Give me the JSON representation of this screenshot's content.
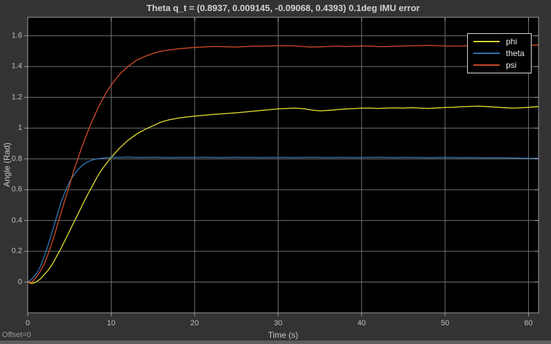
{
  "window": {
    "offset_label": "Offset=0",
    "background_color": "#333333",
    "bottom_bar_color": "#5e5e5e"
  },
  "chart_data": {
    "type": "line",
    "title": "Theta q_t = (0.8937, 0.009145, -0.09068, 0.4393) 0.1deg IMU error",
    "xlabel": "Time (s)",
    "ylabel": "Angle (Rad)",
    "xlim": [
      0,
      61.2
    ],
    "ylim": [
      -0.2,
      1.72
    ],
    "xticks": {
      "values": [
        0,
        10,
        20,
        30,
        40,
        50,
        60
      ],
      "labels": [
        "0",
        "10",
        "20",
        "30",
        "40",
        "50",
        "60"
      ]
    },
    "yticks": {
      "values": [
        0,
        0.2,
        0.4,
        0.6,
        0.8,
        1.0,
        1.2,
        1.4,
        1.6
      ],
      "labels": [
        "0",
        "0.2",
        "0.4",
        "0.6",
        "0.8",
        "1",
        "1.2",
        "1.4",
        "1.6"
      ]
    },
    "grid": true,
    "legend": {
      "position": "northeast",
      "entries": [
        "phi",
        "theta",
        "psi"
      ]
    },
    "colors": {
      "plot_background": "#000000",
      "grid": "#737373",
      "axis_box": "#9e9e9e",
      "tick_text": "#bfbfbf",
      "title_text": "#d2d2d2",
      "phi": "#ddd92f",
      "theta": "#2f76b4",
      "psi": "#cc4a26"
    },
    "x": [
      0,
      0.5,
      1,
      1.5,
      2,
      2.5,
      3,
      3.5,
      4,
      4.5,
      5,
      5.5,
      6,
      6.5,
      7,
      7.5,
      8,
      8.5,
      9,
      9.5,
      10,
      11,
      12,
      13,
      14,
      15,
      16,
      17,
      18,
      19,
      20,
      21,
      22,
      23,
      24,
      25,
      26,
      27,
      28,
      29,
      30,
      31,
      32,
      33,
      34,
      35,
      36,
      37,
      38,
      39,
      40,
      41,
      42,
      43,
      44,
      45,
      46,
      47,
      48,
      49,
      50,
      51,
      52,
      53,
      54,
      55,
      56,
      57,
      58,
      59,
      60,
      61.2
    ],
    "series": [
      {
        "name": "phi",
        "color": "#ddd92f",
        "y": [
          0.0,
          -0.01,
          0.0,
          0.02,
          0.05,
          0.08,
          0.12,
          0.17,
          0.22,
          0.275,
          0.33,
          0.385,
          0.44,
          0.495,
          0.55,
          0.6,
          0.65,
          0.7,
          0.74,
          0.775,
          0.81,
          0.87,
          0.92,
          0.96,
          0.99,
          1.015,
          1.04,
          1.055,
          1.065,
          1.072,
          1.078,
          1.083,
          1.088,
          1.092,
          1.096,
          1.1,
          1.105,
          1.11,
          1.115,
          1.12,
          1.125,
          1.128,
          1.13,
          1.127,
          1.118,
          1.112,
          1.115,
          1.12,
          1.124,
          1.127,
          1.13,
          1.13,
          1.128,
          1.13,
          1.132,
          1.13,
          1.133,
          1.13,
          1.128,
          1.131,
          1.134,
          1.136,
          1.139,
          1.141,
          1.143,
          1.14,
          1.137,
          1.133,
          1.13,
          1.132,
          1.135,
          1.14
        ]
      },
      {
        "name": "theta",
        "color": "#2f76b4",
        "y": [
          0.0,
          0.02,
          0.05,
          0.1,
          0.17,
          0.25,
          0.34,
          0.43,
          0.52,
          0.59,
          0.65,
          0.695,
          0.73,
          0.757,
          0.776,
          0.789,
          0.797,
          0.802,
          0.806,
          0.808,
          0.81,
          0.81,
          0.812,
          0.81,
          0.81,
          0.811,
          0.81,
          0.809,
          0.81,
          0.81,
          0.81,
          0.811,
          0.81,
          0.809,
          0.81,
          0.811,
          0.81,
          0.81,
          0.809,
          0.81,
          0.81,
          0.81,
          0.809,
          0.81,
          0.811,
          0.81,
          0.809,
          0.81,
          0.81,
          0.809,
          0.81,
          0.81,
          0.811,
          0.81,
          0.809,
          0.81,
          0.81,
          0.809,
          0.808,
          0.809,
          0.81,
          0.809,
          0.808,
          0.809,
          0.808,
          0.807,
          0.808,
          0.807,
          0.806,
          0.805,
          0.804,
          0.804
        ]
      },
      {
        "name": "psi",
        "color": "#cc4a26",
        "y": [
          0.0,
          0.0,
          0.03,
          0.07,
          0.12,
          0.19,
          0.27,
          0.36,
          0.45,
          0.54,
          0.63,
          0.72,
          0.8,
          0.88,
          0.95,
          1.02,
          1.08,
          1.14,
          1.19,
          1.24,
          1.28,
          1.35,
          1.4,
          1.44,
          1.465,
          1.485,
          1.5,
          1.508,
          1.515,
          1.52,
          1.524,
          1.527,
          1.53,
          1.53,
          1.528,
          1.527,
          1.53,
          1.532,
          1.533,
          1.534,
          1.535,
          1.536,
          1.534,
          1.53,
          1.527,
          1.528,
          1.53,
          1.533,
          1.53,
          1.532,
          1.534,
          1.533,
          1.53,
          1.53,
          1.532,
          1.534,
          1.535,
          1.536,
          1.538,
          1.536,
          1.534,
          1.533,
          1.534,
          1.536,
          1.538,
          1.539,
          1.538,
          1.536,
          1.534,
          1.536,
          1.538,
          1.54
        ]
      }
    ]
  }
}
